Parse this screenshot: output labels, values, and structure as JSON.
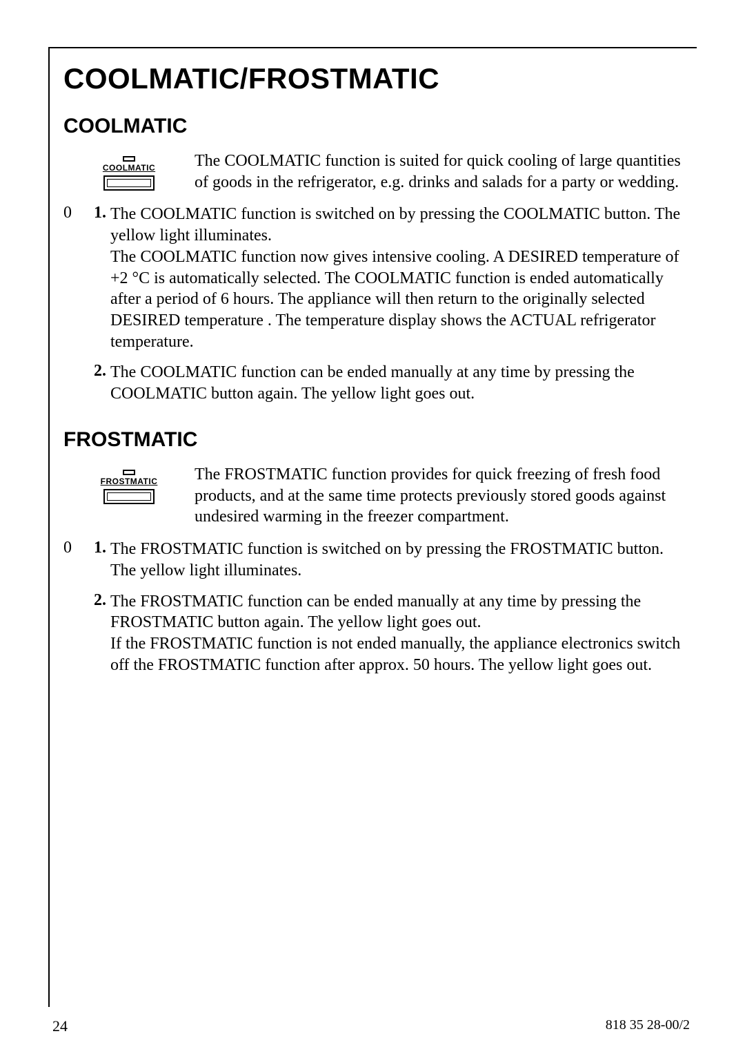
{
  "page": {
    "title": "COOLMATIC/FROSTMATIC",
    "page_number": "24",
    "doc_code": "818 35 28-00/2"
  },
  "coolmatic": {
    "heading": "COOLMATIC",
    "icon_label": "COOLMATIC",
    "intro": "The COOLMATIC function is suited for quick cooling of large quantities of goods in the refrigerator, e.g. drinks and salads for a party or wedding.",
    "margin_symbol": "0",
    "items": [
      {
        "num": "1.",
        "text": "The COOLMATIC function is switched on by pressing the COOLMATIC button. The yellow light illuminates.\nThe COOLMATIC function now gives intensive cooling. A DESIRED temperature of +2 °C is automatically selected. The COOLMATIC function is ended automatically after a period of 6 hours. The appliance will then return to the originally selected DESIRED temperature . The temperature display shows the ACTUAL refrigerator temperature."
      },
      {
        "num": "2.",
        "text": "The COOLMATIC function can be ended manually at any time by pressing the COOLMATIC button again. The yellow light goes out."
      }
    ]
  },
  "frostmatic": {
    "heading": "FROSTMATIC",
    "icon_label": "FROSTMATIC",
    "intro": "The FROSTMATIC function provides for quick freezing of fresh food products, and at the same time protects previously stored goods against undesired warming in the freezer compartment.",
    "margin_symbol": "0",
    "items": [
      {
        "num": "1.",
        "text": "The FROSTMATIC function is switched on by pressing the FROSTMATIC button. The yellow light illuminates."
      },
      {
        "num": "2.",
        "text": "The FROSTMATIC function can be ended manually at any time by pressing the FROSTMATIC button again. The yellow light goes out.\nIf the FROSTMATIC function is not ended manually, the appliance electronics switch off the FROSTMATIC function after approx. 50 hours. The yellow light goes out."
      }
    ]
  }
}
